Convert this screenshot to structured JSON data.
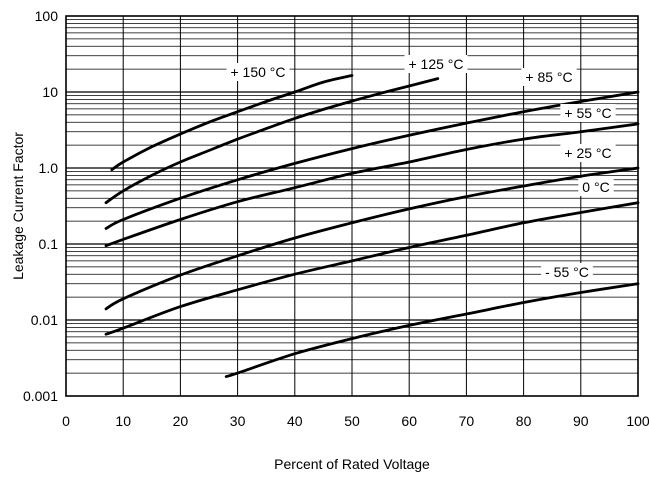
{
  "chart_data": {
    "type": "line",
    "title": "",
    "xlabel": "Percent of Rated Voltage",
    "ylabel": "Leakage Current Factor",
    "xlim": [
      0,
      100
    ],
    "ylim": [
      0.001,
      100
    ],
    "yscale": "log",
    "grid": true,
    "legend": "none",
    "x_ticks": [
      "0",
      "10",
      "20",
      "30",
      "40",
      "50",
      "60",
      "70",
      "80",
      "90",
      "100"
    ],
    "y_ticks": [
      "0.001",
      "0.01",
      "0.1",
      "1.0",
      "10",
      "100"
    ],
    "series": [
      {
        "name": "+ 150 °C",
        "x": [
          8,
          10,
          15,
          20,
          25,
          30,
          35,
          40,
          45,
          50
        ],
        "y": [
          0.95,
          1.2,
          1.9,
          2.8,
          4.0,
          5.5,
          7.5,
          10.0,
          13.5,
          16.5
        ]
      },
      {
        "name": "+ 125 °C",
        "x": [
          7,
          10,
          15,
          20,
          25,
          30,
          35,
          40,
          45,
          50,
          55,
          60,
          65
        ],
        "y": [
          0.35,
          0.5,
          0.8,
          1.2,
          1.7,
          2.4,
          3.3,
          4.5,
          5.9,
          7.6,
          9.6,
          12.0,
          15.0
        ]
      },
      {
        "name": "+ 85 °C",
        "x": [
          7,
          10,
          20,
          30,
          40,
          50,
          60,
          70,
          80,
          90,
          100
        ],
        "y": [
          0.16,
          0.21,
          0.4,
          0.7,
          1.15,
          1.8,
          2.7,
          3.9,
          5.5,
          7.5,
          10.0
        ]
      },
      {
        "name": "+ 55 °C",
        "x": [
          7,
          10,
          20,
          30,
          40,
          50,
          60,
          70,
          80,
          90,
          100
        ],
        "y": [
          0.095,
          0.115,
          0.21,
          0.36,
          0.55,
          0.85,
          1.2,
          1.75,
          2.4,
          3.0,
          3.8
        ]
      },
      {
        "name": "+ 25 °C",
        "x": [
          7,
          10,
          20,
          30,
          40,
          50,
          60,
          70,
          80,
          90,
          100
        ],
        "y": [
          0.014,
          0.019,
          0.039,
          0.07,
          0.12,
          0.19,
          0.29,
          0.42,
          0.58,
          0.78,
          1.0
        ]
      },
      {
        "name": "0 °C",
        "x": [
          7,
          10,
          20,
          30,
          40,
          50,
          60,
          70,
          80,
          90,
          100
        ],
        "y": [
          0.0065,
          0.0078,
          0.015,
          0.025,
          0.04,
          0.06,
          0.09,
          0.13,
          0.19,
          0.26,
          0.35
        ]
      },
      {
        "name": "- 55 °C",
        "x": [
          28,
          30,
          40,
          50,
          60,
          70,
          80,
          90,
          100
        ],
        "y": [
          0.0018,
          0.002,
          0.0036,
          0.0057,
          0.0085,
          0.012,
          0.017,
          0.023,
          0.03
        ]
      }
    ]
  }
}
